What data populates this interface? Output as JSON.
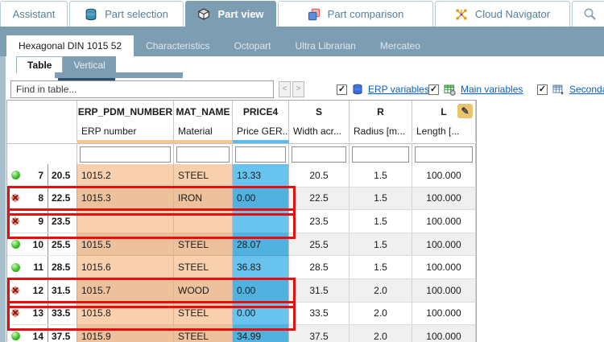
{
  "top_tabs": [
    {
      "label": "Assistant",
      "icon": "none",
      "active": false
    },
    {
      "label": "Part selection",
      "icon": "database-icon",
      "active": false
    },
    {
      "label": "Part view",
      "icon": "cube-icon",
      "active": true
    },
    {
      "label": "Part comparison",
      "icon": "compare-icon",
      "active": false
    },
    {
      "label": "Cloud Navigator",
      "icon": "network-icon",
      "active": false
    },
    {
      "label": "",
      "icon": "search-icon",
      "active": false
    }
  ],
  "sub_tabs": [
    {
      "label": "Hexagonal DIN 1015 52",
      "active": true
    },
    {
      "label": "Characteristics",
      "active": false
    },
    {
      "label": "Octopart",
      "active": false
    },
    {
      "label": "Ultra Librarian",
      "active": false
    },
    {
      "label": "Mercateo",
      "active": false
    }
  ],
  "view_tabs": [
    {
      "label": "Table",
      "active": true
    },
    {
      "label": "Vertical",
      "active": false
    }
  ],
  "find_bar": {
    "placeholder": "Find in table...",
    "prev_label": "<",
    "next_label": ">",
    "toggles": [
      {
        "label": "ERP variables",
        "icon": "erp-database-icon",
        "checked": true
      },
      {
        "label": "Main variables",
        "icon": "main-variables-icon",
        "checked": true
      },
      {
        "label": "Secondary",
        "icon": "secondary-variables-icon",
        "checked": true
      }
    ]
  },
  "table": {
    "columns": [
      {
        "name": "ERP_PDM_NUMBER",
        "desc": "ERP number",
        "accent": "#f6c695",
        "edit_icon": ""
      },
      {
        "name": "MAT_NAME",
        "desc": "Material",
        "accent": "#f6c695",
        "edit_icon": ""
      },
      {
        "name": "PRICE4",
        "desc": "Price GER...",
        "accent": "#56bdec",
        "edit_icon": ""
      },
      {
        "name": "S",
        "desc": "Width acr...",
        "accent": "",
        "edit_icon": ""
      },
      {
        "name": "R",
        "desc": "Radius [m...",
        "accent": "",
        "edit_icon": ""
      },
      {
        "name": "L",
        "desc": "Length [...",
        "accent": "",
        "edit_icon": "pencil-icon"
      }
    ],
    "rows": [
      {
        "index": "7",
        "size": "20.5",
        "status": "ok",
        "erp": "1015.2",
        "material": "STEEL",
        "price": "13.33",
        "s": "20.5",
        "r": "1.5",
        "l": "100.000",
        "flagged": false
      },
      {
        "index": "8",
        "size": "22.5",
        "status": "error",
        "erp": "1015.3",
        "material": "IRON",
        "price": "0.00",
        "s": "22.5",
        "r": "1.5",
        "l": "100.000",
        "flagged": true
      },
      {
        "index": "9",
        "size": "23.5",
        "status": "error",
        "erp": "",
        "material": "",
        "price": "",
        "s": "23.5",
        "r": "1.5",
        "l": "100.000",
        "flagged": true
      },
      {
        "index": "10",
        "size": "25.5",
        "status": "ok",
        "erp": "1015.5",
        "material": "STEEL",
        "price": "28.07",
        "s": "25.5",
        "r": "1.5",
        "l": "100.000",
        "flagged": false
      },
      {
        "index": "11",
        "size": "28.5",
        "status": "ok",
        "erp": "1015.6",
        "material": "STEEL",
        "price": "36.83",
        "s": "28.5",
        "r": "1.5",
        "l": "100.000",
        "flagged": false
      },
      {
        "index": "12",
        "size": "31.5",
        "status": "error",
        "erp": "1015.7",
        "material": "WOOD",
        "price": "0.00",
        "s": "31.5",
        "r": "2.0",
        "l": "100.000",
        "flagged": true
      },
      {
        "index": "13",
        "size": "33.5",
        "status": "error",
        "erp": "1015.8",
        "material": "STEEL",
        "price": "0.00",
        "s": "33.5",
        "r": "2.0",
        "l": "100.000",
        "flagged": true
      },
      {
        "index": "14",
        "size": "37.5",
        "status": "ok",
        "erp": "1015.9",
        "material": "STEEL",
        "price": "34.99",
        "s": "37.5",
        "r": "2.0",
        "l": "100.000",
        "flagged": false
      }
    ]
  },
  "colors": {
    "accent_bar": "#7d9db2",
    "link": "#0b5ec8",
    "flag_border": "#e90d0d",
    "erp_cell_light": "#f8d0ad",
    "erp_cell_dark": "#ecc19b",
    "price_cell_light": "#68c4ef",
    "price_cell_dark": "#51b2e0",
    "status_ok": "#3fbf2a",
    "status_error": "#7c120a"
  }
}
